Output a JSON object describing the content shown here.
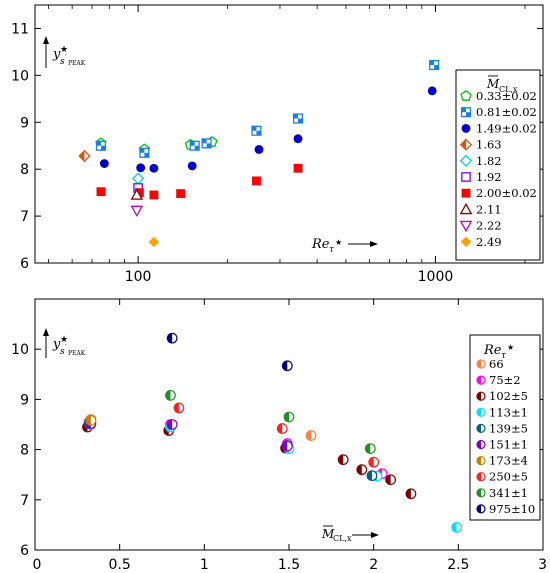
{
  "chart_data": [
    {
      "type": "scatter",
      "x_scale": "log",
      "xlim": [
        45,
        2300
      ],
      "ylim": [
        6,
        11.5
      ],
      "x_ticks": [
        100,
        1000
      ],
      "y_ticks": [
        6,
        7,
        8,
        9,
        10,
        11
      ],
      "x_tick_labels": [
        "100",
        "1000"
      ],
      "y_tick_labels": [
        "6",
        "7",
        "8",
        "9",
        "10",
        "11"
      ],
      "ylabel": "y*s'PEAK",
      "xlabel": "Reτ*",
      "legend_title": "M̄CL,x",
      "legend_position": "right",
      "series": [
        {
          "name": "0.33±0.02",
          "marker": "pentagon-open",
          "color": "#00c000",
          "points": [
            [
              75,
              8.55
            ],
            [
              105,
              8.42
            ],
            [
              150,
              8.52
            ],
            [
              177,
              8.58
            ]
          ]
        },
        {
          "name": "0.81±0.02",
          "marker": "square-half",
          "color": "#1a7fe0",
          "points": [
            [
              75,
              8.5
            ],
            [
              105,
              8.35
            ],
            [
              155,
              8.5
            ],
            [
              170,
              8.55
            ],
            [
              250,
              8.82
            ],
            [
              345,
              9.08
            ],
            [
              990,
              10.22
            ]
          ]
        },
        {
          "name": "1.49±0.02",
          "marker": "circle-filled",
          "color": "#0000cc",
          "points": [
            [
              77,
              8.12
            ],
            [
              102,
              8.03
            ],
            [
              113,
              8.02
            ],
            [
              152,
              8.07
            ],
            [
              255,
              8.42
            ],
            [
              345,
              8.65
            ],
            [
              975,
              9.67
            ]
          ]
        },
        {
          "name": "1.63",
          "marker": "diamond-half",
          "color": "#e05010",
          "points": [
            [
              66,
              8.28
            ]
          ]
        },
        {
          "name": "1.82",
          "marker": "diamond-open",
          "color": "#00d0e0",
          "points": [
            [
              100,
              7.8
            ]
          ]
        },
        {
          "name": "1.92",
          "marker": "square-open",
          "color": "#8000ff",
          "points": [
            [
              100,
              7.6
            ]
          ]
        },
        {
          "name": "2.00±0.02",
          "marker": "square-filled",
          "color": "#ff0000",
          "points": [
            [
              75,
              7.52
            ],
            [
              101,
              7.5
            ],
            [
              113,
              7.45
            ],
            [
              139,
              7.48
            ],
            [
              250,
              7.75
            ],
            [
              345,
              8.02
            ]
          ]
        },
        {
          "name": "2.11",
          "marker": "triangle-up-open",
          "color": "#800000",
          "points": [
            [
              99,
              7.45
            ]
          ]
        },
        {
          "name": "2.22",
          "marker": "triangle-down-open",
          "color": "#c000c0",
          "points": [
            [
              99,
              7.12
            ]
          ]
        },
        {
          "name": "2.49",
          "marker": "diamond-filled",
          "color": "#ffa000",
          "points": [
            [
              113,
              6.45
            ]
          ]
        }
      ]
    },
    {
      "type": "scatter",
      "xlim": [
        0,
        3
      ],
      "ylim": [
        6,
        11
      ],
      "x_ticks": [
        0,
        0.5,
        1,
        1.5,
        2,
        2.5,
        3
      ],
      "y_ticks": [
        6,
        7,
        8,
        9,
        10
      ],
      "x_tick_labels": [
        "0",
        "0.5",
        "1",
        "1.5",
        "2",
        "2.5",
        "3"
      ],
      "y_tick_labels": [
        "6",
        "7",
        "8",
        "9",
        "10"
      ],
      "ylabel": "y*s'PEAK",
      "xlabel": "M̄CL,x",
      "legend_title": "Reτ*",
      "legend_position": "right",
      "series": [
        {
          "name": "66",
          "color": "#ff8040",
          "points": [
            [
              1.63,
              8.28
            ],
            [
              0.33,
              8.6
            ]
          ]
        },
        {
          "name": "75±2",
          "color": "#ff00ff",
          "points": [
            [
              0.32,
              8.55
            ],
            [
              0.8,
              8.5
            ],
            [
              1.49,
              8.12
            ],
            [
              2.05,
              7.52
            ]
          ]
        },
        {
          "name": "102±5",
          "color": "#800000",
          "points": [
            [
              0.31,
              8.45
            ],
            [
              0.79,
              8.38
            ],
            [
              1.48,
              8.03
            ],
            [
              1.82,
              7.8
            ],
            [
              1.93,
              7.6
            ],
            [
              2.1,
              7.4
            ],
            [
              2.22,
              7.12
            ]
          ]
        },
        {
          "name": "113±1",
          "color": "#00e0ff",
          "points": [
            [
              0.33,
              8.5
            ],
            [
              0.8,
              8.45
            ],
            [
              1.5,
              8.02
            ],
            [
              2.02,
              7.47
            ],
            [
              2.49,
              6.45
            ]
          ]
        },
        {
          "name": "139±5",
          "color": "#006080",
          "points": [
            [
              0.32,
              8.52
            ],
            [
              1.49,
              8.08
            ],
            [
              1.99,
              7.48
            ]
          ]
        },
        {
          "name": "151±1",
          "color": "#8000c0",
          "points": [
            [
              0.33,
              8.52
            ],
            [
              0.81,
              8.5
            ],
            [
              1.49,
              8.07
            ]
          ]
        },
        {
          "name": "173±4",
          "color": "#c08000",
          "points": [
            [
              0.33,
              8.58
            ]
          ]
        },
        {
          "name": "250±5",
          "color": "#ff2020",
          "points": [
            [
              0.85,
              8.83
            ],
            [
              1.46,
              8.42
            ],
            [
              2.0,
              7.75
            ]
          ]
        },
        {
          "name": "341±1",
          "color": "#209020",
          "points": [
            [
              0.8,
              9.08
            ],
            [
              1.5,
              8.65
            ],
            [
              1.98,
              8.02
            ]
          ]
        },
        {
          "name": "975±10",
          "color": "#000080",
          "points": [
            [
              0.81,
              10.22
            ],
            [
              1.49,
              9.67
            ]
          ]
        }
      ]
    }
  ]
}
